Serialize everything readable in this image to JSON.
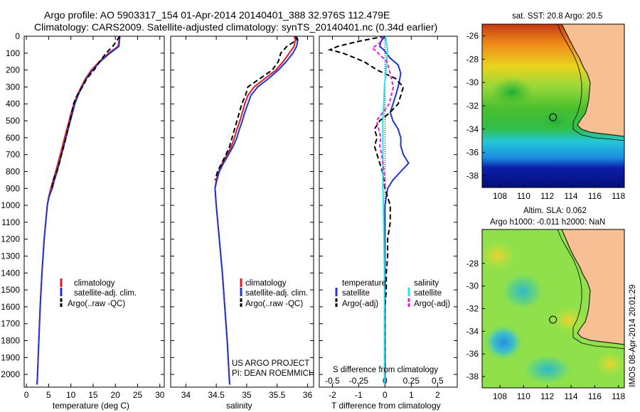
{
  "header": {
    "line1": "Argo profile: AO 5903317_154 01-Apr-2014 20140401_388 32.976S 112.479E",
    "line2": "Climatology: CARS2009. Satellite-adjusted climatology: synTS_20140401.nc (0.34d earlier)"
  },
  "colors": {
    "red": "#e31a1c",
    "blue": "#1f35d1",
    "black": "#000000",
    "cyan": "#22e5ee",
    "magenta": "#e020d8",
    "land": "#f8c092"
  },
  "depth_axis": {
    "ylim": [
      0,
      2075
    ],
    "ticks": [
      0,
      100,
      200,
      300,
      400,
      500,
      600,
      700,
      800,
      900,
      1000,
      1100,
      1200,
      1300,
      1400,
      1500,
      1600,
      1700,
      1800,
      1900,
      2000
    ]
  },
  "chart_data": [
    {
      "type": "line",
      "panel": "temperature",
      "xlabel": "temperature (deg C)",
      "xlim": [
        -0.5,
        31
      ],
      "xticks": [
        0,
        5,
        10,
        15,
        20,
        25,
        30
      ],
      "y": [
        0,
        60,
        100,
        150,
        200,
        250,
        300,
        350,
        400,
        450,
        500,
        550,
        600,
        650,
        700,
        750,
        800,
        850,
        900,
        950,
        1000,
        1200,
        1400,
        1600,
        1800,
        2000,
        2060
      ],
      "series": [
        {
          "name": "climatology",
          "color": "#e31a1c",
          "dash": "",
          "values": [
            21,
            20.6,
            18.5,
            16.4,
            14.6,
            13.3,
            12.3,
            11.4,
            10.7,
            10.1,
            9.6,
            9.1,
            8.6,
            8.1,
            7.6,
            7.1,
            6.6,
            6.0,
            5.5,
            5.0,
            4.7,
            4.0,
            3.5,
            3.1,
            2.8,
            2.5,
            2.4
          ]
        },
        {
          "name": "satellite-adj. clim.",
          "color": "#1f35d1",
          "dash": "",
          "values": [
            21,
            20.8,
            18.8,
            16.6,
            14.9,
            13.5,
            12.5,
            11.6,
            10.9,
            10.4,
            9.9,
            9.4,
            8.9,
            8.4,
            7.9,
            7.4,
            6.9,
            6.3,
            5.8,
            5.1,
            4.7,
            4.0,
            3.5,
            3.1,
            2.8,
            2.5,
            2.4
          ]
        },
        {
          "name": "Argo(..raw -QC)",
          "color": "#000000",
          "dash": "7,4",
          "values": [
            21,
            19.4,
            17.9,
            16.5,
            15.2,
            13.6,
            12.6,
            11.4,
            10.6,
            10.2,
            9.8,
            9.3,
            8.9,
            8.4,
            7.9,
            7.4,
            6.8,
            6.1,
            5.7,
            null,
            null,
            null,
            null,
            null,
            null,
            null,
            null
          ]
        }
      ],
      "legend": {
        "items": [
          "climatology",
          "satellite-adj. clim.",
          "Argo(..raw -QC)"
        ]
      }
    },
    {
      "type": "line",
      "panel": "salinity",
      "xlabel": "salinity",
      "xlim": [
        33.75,
        36.1
      ],
      "xticks": [
        34,
        34.5,
        35,
        35.5,
        36
      ],
      "xticklabels": [
        "34",
        "34.5",
        "35",
        "35.5",
        "36"
      ],
      "y": [
        0,
        20,
        60,
        100,
        150,
        200,
        250,
        300,
        350,
        400,
        450,
        500,
        550,
        600,
        650,
        700,
        750,
        800,
        850,
        900,
        1000,
        1200,
        1400,
        1600,
        1800,
        2000,
        2060
      ],
      "series": [
        {
          "name": "climatology",
          "color": "#e31a1c",
          "dash": "",
          "values": [
            35.78,
            35.8,
            35.78,
            35.7,
            35.6,
            35.48,
            35.3,
            35.12,
            35.02,
            34.97,
            34.93,
            34.89,
            34.84,
            34.8,
            34.75,
            34.68,
            34.6,
            34.54,
            34.5,
            34.48,
            34.5,
            34.55,
            34.6,
            34.64,
            34.68,
            34.71,
            34.72
          ]
        },
        {
          "name": "satellite-adj. clim.",
          "color": "#1f35d1",
          "dash": "",
          "values": [
            35.82,
            35.84,
            35.82,
            35.76,
            35.65,
            35.52,
            35.36,
            35.18,
            35.07,
            35.02,
            34.97,
            34.93,
            34.88,
            34.84,
            34.78,
            34.7,
            34.62,
            34.55,
            34.51,
            34.48,
            34.5,
            34.55,
            34.6,
            34.64,
            34.68,
            34.71,
            34.72
          ]
        },
        {
          "name": "Argo(..raw -QC)",
          "color": "#000000",
          "dash": "7,4",
          "values": [
            35.8,
            35.83,
            35.66,
            35.56,
            35.52,
            35.42,
            35.22,
            35.02,
            34.98,
            34.92,
            34.88,
            34.84,
            34.8,
            34.76,
            34.72,
            34.66,
            34.59,
            34.52,
            34.48,
            null,
            null,
            null,
            null,
            null,
            null,
            null,
            null
          ]
        }
      ],
      "legend": {
        "items": [
          "climatology",
          "satellite-adj. clim.",
          "Argo(..raw -QC)"
        ]
      },
      "annotations": [
        "US ARGO PROJECT",
        "PI: DEAN ROEMMICH"
      ]
    },
    {
      "type": "line",
      "panel": "differences",
      "xlabel": "T difference from climatology",
      "xlabel_top": "S difference from climatology",
      "xlim": [
        -2.5,
        2.75
      ],
      "xticks": [
        -2,
        -1,
        0,
        1,
        2
      ],
      "top_ticks": [
        -0.5,
        -0.25,
        0,
        0.25,
        0.5
      ],
      "top_ticklabels": [
        "-0.5",
        "-0.25",
        "0",
        "0.25",
        "0.5"
      ],
      "S_to_T_scale": 4,
      "legend": {
        "temperature_heading": "temperature",
        "salinity_heading": "salinity",
        "items": [
          "satellite",
          "Argo(-adj)",
          "satellite",
          "Argo(-adj)"
        ]
      },
      "series": [
        {
          "name": "satellite (temperature)",
          "color": "#1f35d1",
          "dash": "",
          "y": [
            0,
            30,
            60,
            80,
            100,
            130,
            170,
            220,
            300,
            380,
            450,
            500,
            550,
            600,
            650,
            700,
            750,
            800,
            850,
            900,
            950,
            1000,
            1200,
            1400,
            1600,
            1800,
            2000,
            2060
          ],
          "values": [
            0.0,
            -0.15,
            -0.2,
            -0.05,
            0.05,
            0.2,
            0.5,
            0.6,
            0.5,
            0.35,
            0.2,
            0.3,
            0.5,
            0.6,
            0.6,
            0.7,
            0.9,
            0.6,
            0.3,
            0.1,
            0.05,
            0.0,
            0.0,
            0.0,
            0.0,
            0.0,
            0.0,
            0.0
          ]
        },
        {
          "name": "Argo(-adj) (temperature)",
          "color": "#000000",
          "dash": "7,4",
          "y": [
            0,
            30,
            60,
            80,
            100,
            150,
            200,
            250,
            300,
            350,
            400,
            450,
            500,
            550,
            600,
            650,
            700,
            750,
            800,
            850,
            900,
            950,
            1000,
            1100,
            1200,
            1300,
            1400,
            1500,
            1600,
            1700,
            1800,
            1900,
            2000
          ],
          "values": [
            0.0,
            -1.0,
            -1.8,
            -2.1,
            -1.6,
            -0.8,
            -0.3,
            0.4,
            0.7,
            0.6,
            0.5,
            0.2,
            -0.2,
            -0.4,
            -0.3,
            -0.4,
            -0.3,
            -0.2,
            -0.1,
            -0.05,
            0.0,
            0.1,
            0.2,
            0.2,
            0.1,
            0.1,
            0.05,
            0.05,
            0.0,
            0.0,
            0.0,
            0.0,
            0.0
          ]
        },
        {
          "name": "satellite (salinity)",
          "color": "#22e5ee",
          "dash": "",
          "y": [
            0,
            40,
            80,
            150,
            200,
            300,
            400,
            500,
            600,
            700,
            800,
            900,
            1000,
            1200,
            1400,
            1600,
            1800,
            2000,
            2060
          ],
          "values": [
            0.005,
            0.012,
            0.025,
            0.015,
            0.01,
            -0.005,
            -0.012,
            -0.02,
            -0.02,
            -0.02,
            -0.02,
            -0.02,
            -0.015,
            -0.01,
            -0.005,
            -0.005,
            -0.005,
            -0.005,
            -0.005
          ]
        },
        {
          "name": "Argo(-adj) (salinity)",
          "color": "#e020d8",
          "dash": "5,3",
          "y": [
            0,
            40,
            70,
            90,
            110,
            150,
            200,
            300,
            400,
            450,
            500,
            550,
            600,
            650,
            700,
            750,
            800,
            850,
            900
          ],
          "values": [
            -0.02,
            -0.05,
            -0.12,
            -0.08,
            -0.05,
            0.02,
            0.04,
            0.08,
            0.04,
            -0.02,
            -0.08,
            -0.06,
            -0.04,
            -0.05,
            -0.03,
            -0.02,
            -0.01,
            0.0,
            0.0
          ]
        }
      ]
    },
    {
      "type": "heatmap",
      "panel": "sst_map",
      "title": "sat. SST: 20.8 Argo: 20.5",
      "xlim": [
        106.5,
        118.5
      ],
      "ylim": [
        -39,
        -25
      ],
      "xticks": [
        108,
        110,
        112,
        114,
        116,
        118
      ],
      "yticks": [
        -26,
        -28,
        -30,
        -32,
        -34,
        -36,
        -38
      ],
      "argo_position": [
        112.479,
        -32.976
      ]
    },
    {
      "type": "heatmap",
      "panel": "sla_map",
      "title_line1": "Altim. SLA: 0.062",
      "title_line2": "Argo h1000: -0.011 h2000: NaN",
      "xlim": [
        106.5,
        118.5
      ],
      "ylim": [
        -39,
        -25
      ],
      "xticks": [
        108,
        110,
        112,
        114,
        116,
        118
      ],
      "yticks": [
        -28,
        -30,
        -32,
        -34,
        -36,
        -38
      ],
      "argo_position": [
        112.479,
        -32.976
      ]
    }
  ],
  "credit": "IMOS 08-Apr-2014 20:01:29"
}
